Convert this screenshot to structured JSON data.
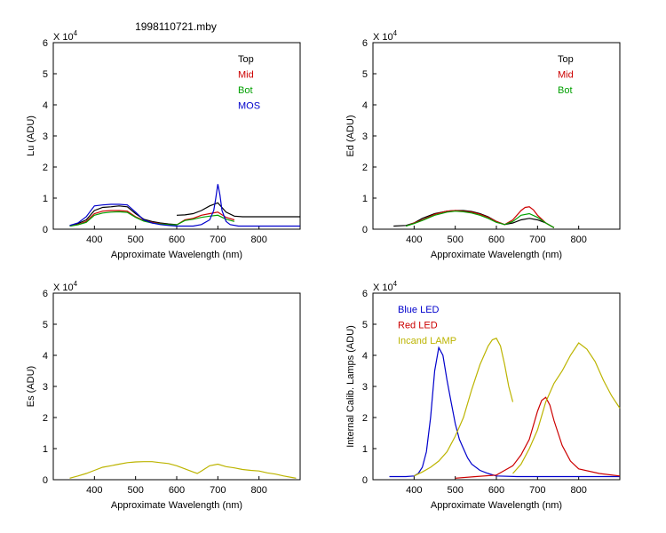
{
  "figure": {
    "title": "1998110721.mby",
    "exponent_base": "X 10",
    "exponent_power": "4",
    "colors": {
      "black": "#000000",
      "red": "#cc0000",
      "green": "#00a000",
      "blue": "#0000cc",
      "yellow": "#bcb400",
      "axis": "#000000"
    }
  },
  "chart_data": [
    {
      "id": "lu",
      "type": "line",
      "title": "1998110721.mby",
      "xlabel": "Approximate Wavelength (nm)",
      "ylabel": "Lu (ADU)",
      "xlim": [
        300,
        900
      ],
      "ylim": [
        0,
        6
      ],
      "y_scale_note": "values in units of 10^4 ADU",
      "xticks": [
        400,
        500,
        600,
        700,
        800
      ],
      "yticks": [
        0,
        1,
        2,
        3,
        4,
        5,
        6
      ],
      "legend_position": "top-right",
      "series": [
        {
          "name": "Top",
          "color": "#000000",
          "x": [
            340,
            360,
            380,
            400,
            420,
            440,
            460,
            480,
            500,
            520,
            540,
            560,
            580,
            600,
            600,
            620,
            640,
            660,
            680,
            700,
            720,
            740,
            760,
            800,
            850,
            900
          ],
          "y": [
            0.12,
            0.18,
            0.3,
            0.6,
            0.7,
            0.72,
            0.75,
            0.72,
            0.5,
            0.32,
            0.25,
            0.2,
            0.17,
            0.15,
            0.45,
            0.46,
            0.5,
            0.6,
            0.75,
            0.85,
            0.55,
            0.42,
            0.4,
            0.4,
            0.4,
            0.4
          ]
        },
        {
          "name": "Mid",
          "color": "#cc0000",
          "x": [
            340,
            360,
            380,
            400,
            420,
            440,
            460,
            480,
            500,
            520,
            540,
            560,
            580,
            600,
            620,
            640,
            660,
            680,
            700,
            720,
            740
          ],
          "y": [
            0.1,
            0.15,
            0.25,
            0.5,
            0.58,
            0.6,
            0.6,
            0.58,
            0.4,
            0.28,
            0.22,
            0.18,
            0.15,
            0.14,
            0.3,
            0.35,
            0.45,
            0.5,
            0.55,
            0.38,
            0.3
          ]
        },
        {
          "name": "Bot",
          "color": "#00a000",
          "x": [
            340,
            360,
            380,
            400,
            420,
            440,
            460,
            480,
            500,
            520,
            540,
            560,
            580,
            600,
            620,
            640,
            660,
            680,
            700,
            720,
            740
          ],
          "y": [
            0.1,
            0.14,
            0.22,
            0.45,
            0.52,
            0.55,
            0.56,
            0.54,
            0.38,
            0.26,
            0.2,
            0.17,
            0.15,
            0.14,
            0.28,
            0.32,
            0.38,
            0.42,
            0.45,
            0.32,
            0.25
          ]
        },
        {
          "name": "MOS",
          "color": "#0000cc",
          "x": [
            340,
            360,
            380,
            400,
            420,
            440,
            460,
            480,
            500,
            520,
            540,
            560,
            580,
            600,
            620,
            640,
            660,
            680,
            690,
            695,
            700,
            705,
            710,
            720,
            730,
            750,
            800,
            850,
            900
          ],
          "y": [
            0.12,
            0.2,
            0.4,
            0.75,
            0.78,
            0.8,
            0.8,
            0.78,
            0.55,
            0.3,
            0.2,
            0.15,
            0.12,
            0.1,
            0.1,
            0.1,
            0.15,
            0.3,
            0.6,
            1.0,
            1.45,
            1.1,
            0.6,
            0.25,
            0.15,
            0.1,
            0.1,
            0.1,
            0.1
          ]
        }
      ]
    },
    {
      "id": "ed",
      "type": "line",
      "xlabel": "Approximate Wavelength (nm)",
      "ylabel": "Ed  (ADU)",
      "xlim": [
        300,
        900
      ],
      "ylim": [
        0,
        6
      ],
      "xticks": [
        400,
        500,
        600,
        700,
        800
      ],
      "yticks": [
        0,
        1,
        2,
        3,
        4,
        5,
        6
      ],
      "legend_position": "top-right",
      "series": [
        {
          "name": "Top",
          "color": "#000000",
          "x": [
            350,
            380,
            400,
            420,
            450,
            480,
            500,
            520,
            540,
            560,
            580,
            600,
            620,
            640,
            660,
            680,
            700,
            720,
            740
          ],
          "y": [
            0.1,
            0.12,
            0.2,
            0.35,
            0.5,
            0.58,
            0.6,
            0.6,
            0.57,
            0.5,
            0.4,
            0.25,
            0.15,
            0.2,
            0.3,
            0.35,
            0.3,
            0.2,
            0.05
          ]
        },
        {
          "name": "Mid",
          "color": "#cc0000",
          "x": [
            380,
            400,
            420,
            450,
            480,
            500,
            520,
            540,
            560,
            580,
            600,
            620,
            640,
            660,
            670,
            680,
            690,
            700,
            720,
            740
          ],
          "y": [
            0.1,
            0.2,
            0.3,
            0.48,
            0.58,
            0.6,
            0.58,
            0.55,
            0.48,
            0.38,
            0.25,
            0.15,
            0.3,
            0.6,
            0.7,
            0.72,
            0.62,
            0.45,
            0.2,
            0.05
          ]
        },
        {
          "name": "Bot",
          "color": "#00a000",
          "x": [
            380,
            400,
            420,
            450,
            480,
            500,
            520,
            540,
            560,
            580,
            600,
            620,
            640,
            660,
            680,
            700,
            720,
            740
          ],
          "y": [
            0.1,
            0.18,
            0.28,
            0.45,
            0.55,
            0.58,
            0.56,
            0.52,
            0.45,
            0.35,
            0.22,
            0.15,
            0.25,
            0.45,
            0.5,
            0.38,
            0.2,
            0.05
          ]
        }
      ]
    },
    {
      "id": "es",
      "type": "line",
      "xlabel": "Approximate Wavelength (nm)",
      "ylabel": "Es  (ADU)",
      "xlim": [
        300,
        900
      ],
      "ylim": [
        0,
        6
      ],
      "xticks": [
        400,
        500,
        600,
        700,
        800
      ],
      "yticks": [
        0,
        1,
        2,
        3,
        4,
        5,
        6
      ],
      "series": [
        {
          "name": "Es",
          "color": "#bcb400",
          "x": [
            340,
            360,
            380,
            400,
            420,
            440,
            460,
            480,
            500,
            520,
            540,
            560,
            580,
            600,
            620,
            640,
            650,
            660,
            680,
            700,
            720,
            740,
            760,
            780,
            800,
            820,
            840,
            860,
            880,
            890
          ],
          "y": [
            0.05,
            0.12,
            0.2,
            0.3,
            0.4,
            0.45,
            0.5,
            0.55,
            0.57,
            0.58,
            0.58,
            0.55,
            0.52,
            0.45,
            0.35,
            0.25,
            0.2,
            0.28,
            0.45,
            0.5,
            0.42,
            0.38,
            0.33,
            0.3,
            0.28,
            0.22,
            0.18,
            0.12,
            0.07,
            0.05
          ]
        }
      ]
    },
    {
      "id": "calib",
      "type": "line",
      "xlabel": "Approximate Wavelength (nm)",
      "ylabel": "Internal Calib. Lamps (ADU)",
      "xlim": [
        300,
        900
      ],
      "ylim": [
        0,
        6
      ],
      "xticks": [
        400,
        500,
        600,
        700,
        800
      ],
      "yticks": [
        0,
        1,
        2,
        3,
        4,
        5,
        6
      ],
      "legend_position": "top-left",
      "series": [
        {
          "name": "Blue LED",
          "color": "#0000cc",
          "x": [
            340,
            380,
            400,
            410,
            420,
            430,
            440,
            450,
            460,
            470,
            480,
            490,
            500,
            510,
            520,
            530,
            540,
            560,
            580,
            600,
            650,
            700,
            800,
            900
          ],
          "y": [
            0.1,
            0.1,
            0.12,
            0.2,
            0.4,
            0.9,
            2.0,
            3.5,
            4.25,
            4.0,
            3.2,
            2.5,
            1.8,
            1.3,
            1.0,
            0.7,
            0.5,
            0.3,
            0.2,
            0.12,
            0.1,
            0.1,
            0.1,
            0.1
          ]
        },
        {
          "name": "Red LED",
          "color": "#cc0000",
          "x": [
            500,
            550,
            600,
            620,
            640,
            660,
            680,
            700,
            710,
            720,
            730,
            740,
            760,
            780,
            800,
            850,
            900
          ],
          "y": [
            0.05,
            0.1,
            0.15,
            0.3,
            0.45,
            0.8,
            1.3,
            2.2,
            2.55,
            2.65,
            2.4,
            1.9,
            1.1,
            0.6,
            0.35,
            0.2,
            0.12
          ]
        },
        {
          "name": "Incand LAMP",
          "color": "#bcb400",
          "x": [
            400,
            420,
            440,
            460,
            480,
            500,
            520,
            540,
            560,
            580,
            590,
            600,
            610,
            620,
            630,
            640,
            640,
            660,
            680,
            700,
            720,
            740,
            760,
            780,
            800,
            820,
            840,
            860,
            880,
            900
          ],
          "y": [
            0.12,
            0.25,
            0.4,
            0.6,
            0.9,
            1.4,
            2.0,
            2.9,
            3.7,
            4.3,
            4.5,
            4.55,
            4.3,
            3.7,
            3.0,
            2.5,
            0.2,
            0.5,
            1.0,
            1.6,
            2.5,
            3.1,
            3.5,
            4.0,
            4.4,
            4.2,
            3.8,
            3.2,
            2.7,
            2.3
          ]
        }
      ]
    }
  ]
}
